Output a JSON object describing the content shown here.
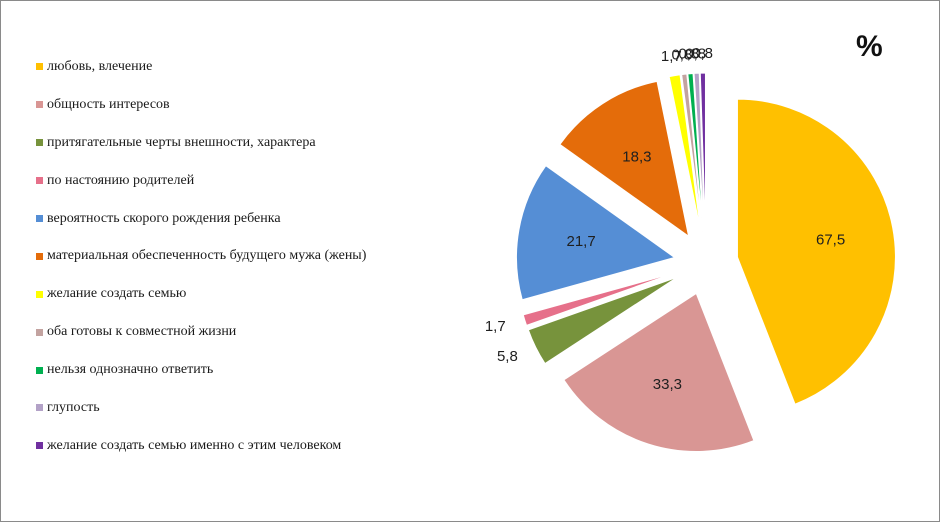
{
  "chart_data": {
    "type": "pie",
    "title": "%",
    "legend_position": "left",
    "exploded": true,
    "slices": [
      {
        "label": "любовь, влечение",
        "value": 67.5,
        "value_label": "67,5",
        "color": "#FFC000"
      },
      {
        "label": "общность интересов",
        "value": 33.3,
        "value_label": "33,3",
        "color": "#D99694"
      },
      {
        "label": "притягательные черты внешности, характера",
        "value": 5.8,
        "value_label": "5,8",
        "color": "#77933C"
      },
      {
        "label": "по настоянию родителей",
        "value": 1.7,
        "value_label": "1,7",
        "color": "#E6708A"
      },
      {
        "label": "вероятность скорого рождения ребенка",
        "value": 21.7,
        "value_label": "21,7",
        "color": "#558ED5"
      },
      {
        "label": "материальная обеспеченность будущего мужа (жены)",
        "value": 18.3,
        "value_label": "18,3",
        "color": "#E46C0A"
      },
      {
        "label": "желание создать семью",
        "value": 1.7,
        "value_label": "1,7",
        "color": "#FFFF00"
      },
      {
        "label": "оба готовы к совместной жизни",
        "value": 0.8,
        "value_label": "0,8",
        "color": "#C3A3A0"
      },
      {
        "label": "нельзя однозначно ответить",
        "value": 0.8,
        "value_label": "0,8",
        "color": "#00B050"
      },
      {
        "label": "глупость",
        "value": 0.8,
        "value_label": "0,8",
        "color": "#B3A2C7"
      },
      {
        "label": "желание создать семью именно с этим человеком",
        "value": 0.8,
        "value_label": "0,8",
        "color": "#7030A0"
      }
    ]
  }
}
